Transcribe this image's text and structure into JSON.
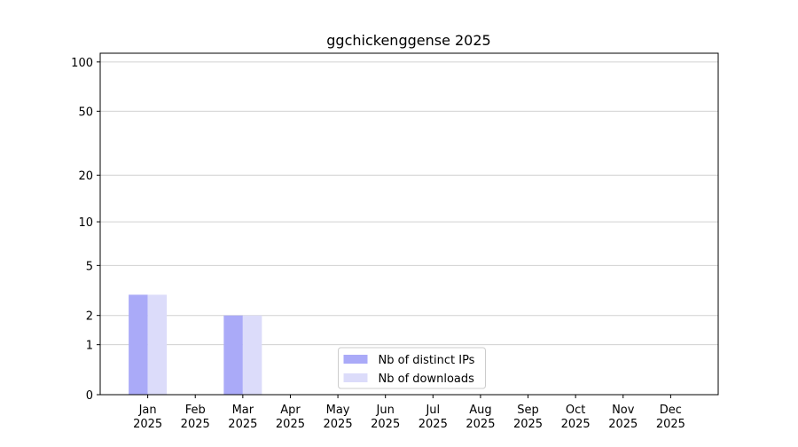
{
  "chart_data": {
    "type": "bar",
    "title": "ggchickenggense 2025",
    "categories": [
      "Jan\n2025",
      "Feb\n2025",
      "Mar\n2025",
      "Apr\n2025",
      "May\n2025",
      "Jun\n2025",
      "Jul\n2025",
      "Aug\n2025",
      "Sep\n2025",
      "Oct\n2025",
      "Nov\n2025",
      "Dec\n2025"
    ],
    "series": [
      {
        "name": "Nb of distinct IPs",
        "color": "#aaaaf8",
        "values": [
          3,
          0,
          2,
          0,
          0,
          0,
          0,
          0,
          0,
          0,
          0,
          0
        ]
      },
      {
        "name": "Nb of downloads",
        "color": "#dcdcfa",
        "values": [
          3,
          0,
          2,
          0,
          0,
          0,
          0,
          0,
          0,
          0,
          0,
          0
        ]
      }
    ],
    "yscale": "log1p",
    "ylim": [
      0,
      113
    ],
    "yticks": [
      0,
      1,
      2,
      5,
      10,
      20,
      50,
      100
    ],
    "grid": true,
    "legend": "lower center"
  }
}
